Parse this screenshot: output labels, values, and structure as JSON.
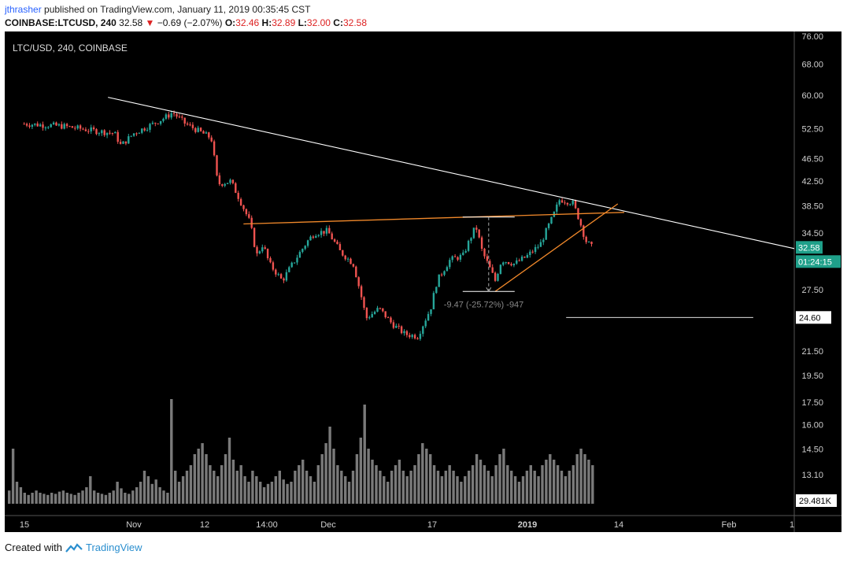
{
  "header": {
    "author": "jthrasher",
    "published": "published on TradingView.com, January 11, 2019 00:35:45 CST"
  },
  "ticker": {
    "symbol": "COINBASE:LTCUSD, 240",
    "last": "32.58",
    "change": "−0.69 (−2.07%)",
    "open_label": "O:",
    "open": "32.46",
    "high_label": "H:",
    "high": "32.89",
    "low_label": "L:",
    "low": "32.00",
    "close_label": "C:",
    "close": "32.58"
  },
  "chart_label": "LTC/USD, 240, COINBASE",
  "footer": {
    "created_with": "Created with",
    "brand": "TradingView"
  },
  "colors": {
    "background": "#000000",
    "up": "#26a69a",
    "down": "#ef5350",
    "trendline": "#ffffff",
    "neckline": "#f0882a",
    "price_label": "#1fa08a",
    "volume": "#7a7a7a"
  },
  "chart_data": {
    "type": "candlestick",
    "scale": "log",
    "y_ticks": [
      "76.00",
      "68.00",
      "60.00",
      "52.50",
      "46.50",
      "42.50",
      "38.50",
      "34.50",
      "27.50",
      "21.50",
      "19.50",
      "17.50",
      "16.00",
      "14.50",
      "13.10"
    ],
    "x_ticks": [
      "15",
      "Nov",
      "12",
      "14:00",
      "Dec",
      "17",
      "2019",
      "14",
      "Feb",
      "1"
    ],
    "price_labels": [
      {
        "text": "32.58",
        "kind": "last"
      },
      {
        "text": "01:24:15",
        "kind": "countdown"
      },
      {
        "text": "24.60",
        "kind": "level"
      },
      {
        "text": "29.481K",
        "kind": "volume"
      }
    ],
    "measure_annotation": "-9.47 (-25.72%) -947",
    "price_path": [
      {
        "date": "2018-10-15",
        "price": 53.5
      },
      {
        "date": "2018-10-21",
        "price": 53.0
      },
      {
        "date": "2018-10-26",
        "price": 52.0
      },
      {
        "date": "2018-10-29",
        "price": 51.5
      },
      {
        "date": "2018-10-30",
        "price": 49.0
      },
      {
        "date": "2018-11-01",
        "price": 51.5
      },
      {
        "date": "2018-11-04",
        "price": 53.5
      },
      {
        "date": "2018-11-06",
        "price": 55.0
      },
      {
        "date": "2018-11-07",
        "price": 56.0
      },
      {
        "date": "2018-11-09",
        "price": 53.5
      },
      {
        "date": "2018-11-13",
        "price": 50.5
      },
      {
        "date": "2018-11-14",
        "price": 42.0
      },
      {
        "date": "2018-11-16",
        "price": 42.5
      },
      {
        "date": "2018-11-19",
        "price": 36.0
      },
      {
        "date": "2018-11-20",
        "price": 31.5
      },
      {
        "date": "2018-11-21",
        "price": 33.0
      },
      {
        "date": "2018-11-22",
        "price": 30.5
      },
      {
        "date": "2018-11-24",
        "price": 28.5
      },
      {
        "date": "2018-11-26",
        "price": 31.0
      },
      {
        "date": "2018-11-28",
        "price": 33.5
      },
      {
        "date": "2018-11-29",
        "price": 34.5
      },
      {
        "date": "2018-12-01",
        "price": 34.8
      },
      {
        "date": "2018-12-03",
        "price": 32.0
      },
      {
        "date": "2018-12-05",
        "price": 30.5
      },
      {
        "date": "2018-12-07",
        "price": 24.5
      },
      {
        "date": "2018-12-09",
        "price": 25.5
      },
      {
        "date": "2018-12-11",
        "price": 24.0
      },
      {
        "date": "2018-12-13",
        "price": 23.0
      },
      {
        "date": "2018-12-15",
        "price": 22.8
      },
      {
        "date": "2018-12-17",
        "price": 25.5
      },
      {
        "date": "2018-12-18",
        "price": 28.5
      },
      {
        "date": "2018-12-20",
        "price": 31.0
      },
      {
        "date": "2018-12-22",
        "price": 31.5
      },
      {
        "date": "2018-12-24",
        "price": 35.5
      },
      {
        "date": "2018-12-25",
        "price": 32.0
      },
      {
        "date": "2018-12-27",
        "price": 28.5
      },
      {
        "date": "2018-12-28",
        "price": 31.0
      },
      {
        "date": "2018-12-30",
        "price": 30.5
      },
      {
        "date": "2019-01-01",
        "price": 31.5
      },
      {
        "date": "2019-01-03",
        "price": 33.0
      },
      {
        "date": "2019-01-05",
        "price": 37.0
      },
      {
        "date": "2019-01-06",
        "price": 39.5
      },
      {
        "date": "2019-01-08",
        "price": 39.0
      },
      {
        "date": "2019-01-09",
        "price": 36.5
      },
      {
        "date": "2019-01-10",
        "price": 33.5
      },
      {
        "date": "2019-01-11",
        "price": 32.58
      }
    ],
    "volume_series": [
      0.12,
      0.5,
      0.2,
      0.15,
      0.1,
      0.08,
      0.1,
      0.12,
      0.1,
      0.09,
      0.08,
      0.1,
      0.09,
      0.11,
      0.12,
      0.1,
      0.09,
      0.08,
      0.1,
      0.12,
      0.15,
      0.25,
      0.12,
      0.1,
      0.09,
      0.08,
      0.1,
      0.12,
      0.2,
      0.14,
      0.1,
      0.09,
      0.12,
      0.15,
      0.2,
      0.3,
      0.25,
      0.18,
      0.22,
      0.15,
      0.12,
      0.1,
      0.95,
      0.3,
      0.2,
      0.25,
      0.3,
      0.35,
      0.45,
      0.5,
      0.55,
      0.45,
      0.35,
      0.3,
      0.25,
      0.35,
      0.45,
      0.6,
      0.4,
      0.3,
      0.35,
      0.25,
      0.2,
      0.3,
      0.25,
      0.2,
      0.15,
      0.18,
      0.2,
      0.25,
      0.3,
      0.22,
      0.18,
      0.2,
      0.3,
      0.35,
      0.4,
      0.3,
      0.25,
      0.2,
      0.35,
      0.45,
      0.55,
      0.7,
      0.5,
      0.35,
      0.3,
      0.25,
      0.2,
      0.3,
      0.45,
      0.6,
      0.9,
      0.5,
      0.4,
      0.35,
      0.3,
      0.25,
      0.2,
      0.3,
      0.35,
      0.4,
      0.3,
      0.25,
      0.3,
      0.35,
      0.45,
      0.55,
      0.5,
      0.45,
      0.35,
      0.3,
      0.25,
      0.3,
      0.35,
      0.3,
      0.25,
      0.2,
      0.25,
      0.3,
      0.35,
      0.45,
      0.4,
      0.35,
      0.3,
      0.25,
      0.35,
      0.45,
      0.5,
      0.35,
      0.3,
      0.25,
      0.2,
      0.25,
      0.3,
      0.35,
      0.3,
      0.25,
      0.35,
      0.4,
      0.45,
      0.4,
      0.35,
      0.3,
      0.25,
      0.3,
      0.35,
      0.45,
      0.5,
      0.45,
      0.4,
      0.35
    ],
    "lines": [
      {
        "name": "descending trendline",
        "from": {
          "date": "2018-10-28",
          "price": 59.5
        },
        "to": {
          "date": "2019-01-29",
          "price": 35.0
        }
      },
      {
        "name": "neckline",
        "from": {
          "date": "2018-11-18",
          "price": 35.8
        },
        "to": {
          "date": "2019-01-16",
          "price": 37.5
        }
      },
      {
        "name": "rising support",
        "from": {
          "date": "2018-12-27",
          "price": 27.3
        },
        "to": {
          "date": "2019-01-15",
          "price": 38.8
        }
      },
      {
        "name": "level",
        "from": {
          "date": "2019-01-07",
          "price": 24.6
        },
        "to": {
          "date": "2019-02-05",
          "price": 24.6
        }
      }
    ],
    "legend": "none",
    "grid": false
  }
}
